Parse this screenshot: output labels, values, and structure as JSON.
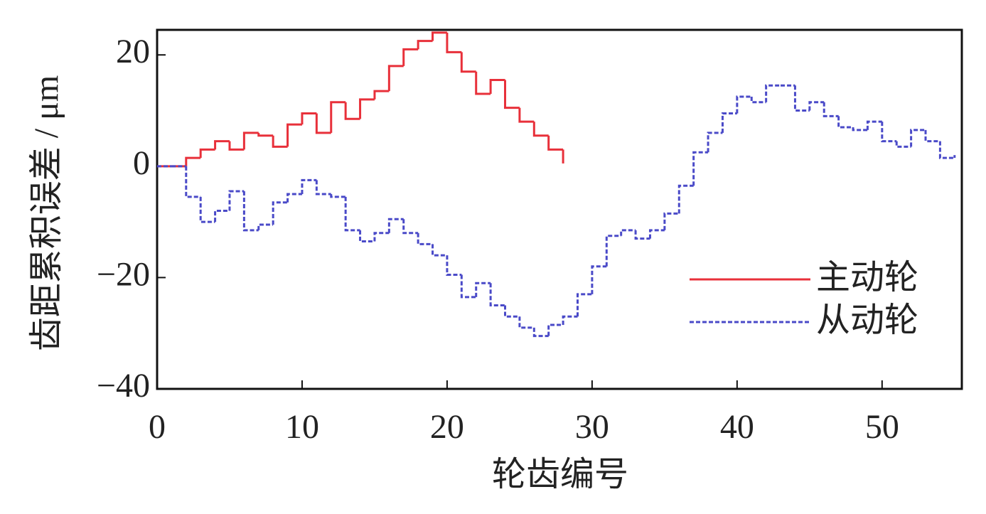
{
  "chart_data": {
    "type": "step",
    "x_label": "轮齿编号",
    "y_label": "齿距累积误差 / μm",
    "xlim": [
      0,
      55.5
    ],
    "xticks": [
      0,
      10,
      20,
      30,
      40,
      50
    ],
    "ylim": [
      -40,
      24.5
    ],
    "yticks": [
      {
        "value": -40,
        "label": "−40"
      },
      {
        "value": -20,
        "label": "−20"
      },
      0,
      20
    ],
    "legend": "lower right",
    "series": [
      {
        "name": "主动轮",
        "color": "#e8303a",
        "dash": "solid",
        "x": [
          0,
          1,
          2,
          3,
          4,
          5,
          6,
          7,
          8,
          9,
          10,
          11,
          12,
          13,
          14,
          15,
          16,
          17,
          18,
          19,
          20,
          21,
          22,
          23,
          24,
          25,
          26,
          27,
          28
        ],
        "values": [
          0,
          0,
          1.5,
          3,
          4.5,
          3,
          6,
          5.5,
          3.5,
          7.5,
          9.5,
          6,
          11.5,
          8.5,
          12,
          13.5,
          18,
          21,
          22.5,
          24,
          20.5,
          17,
          13,
          15.5,
          10.5,
          8,
          5.5,
          3,
          0.5
        ]
      },
      {
        "name": "从动轮",
        "color": "#4a4ac8",
        "dash": "dashed",
        "x": [
          0,
          1,
          2,
          3,
          4,
          5,
          6,
          7,
          8,
          9,
          10,
          11,
          12,
          13,
          14,
          15,
          16,
          17,
          18,
          19,
          20,
          21,
          22,
          23,
          24,
          25,
          26,
          27,
          28,
          29,
          30,
          31,
          32,
          33,
          34,
          35,
          36,
          37,
          38,
          39,
          40,
          41,
          42,
          43,
          44,
          45,
          46,
          47,
          48,
          49,
          50,
          51,
          52,
          53,
          54,
          55
        ],
        "values": [
          0,
          0,
          -5.5,
          -10,
          -8,
          -4.5,
          -11.5,
          -10.5,
          -6.5,
          -5,
          -2.5,
          -5,
          -5.5,
          -11.5,
          -13.5,
          -12,
          -9.5,
          -12,
          -14,
          -16,
          -19.5,
          -23.5,
          -21,
          -25,
          -27,
          -29,
          -30.5,
          -28.5,
          -27,
          -23,
          -18,
          -12.5,
          -11.5,
          -13,
          -11.5,
          -8.5,
          -3.5,
          2.5,
          6,
          9.5,
          12.5,
          11.5,
          14.5,
          14.5,
          10,
          11.5,
          9,
          7,
          6.5,
          8,
          4.5,
          3.5,
          6.5,
          4.5,
          1.5,
          2
        ]
      }
    ]
  }
}
